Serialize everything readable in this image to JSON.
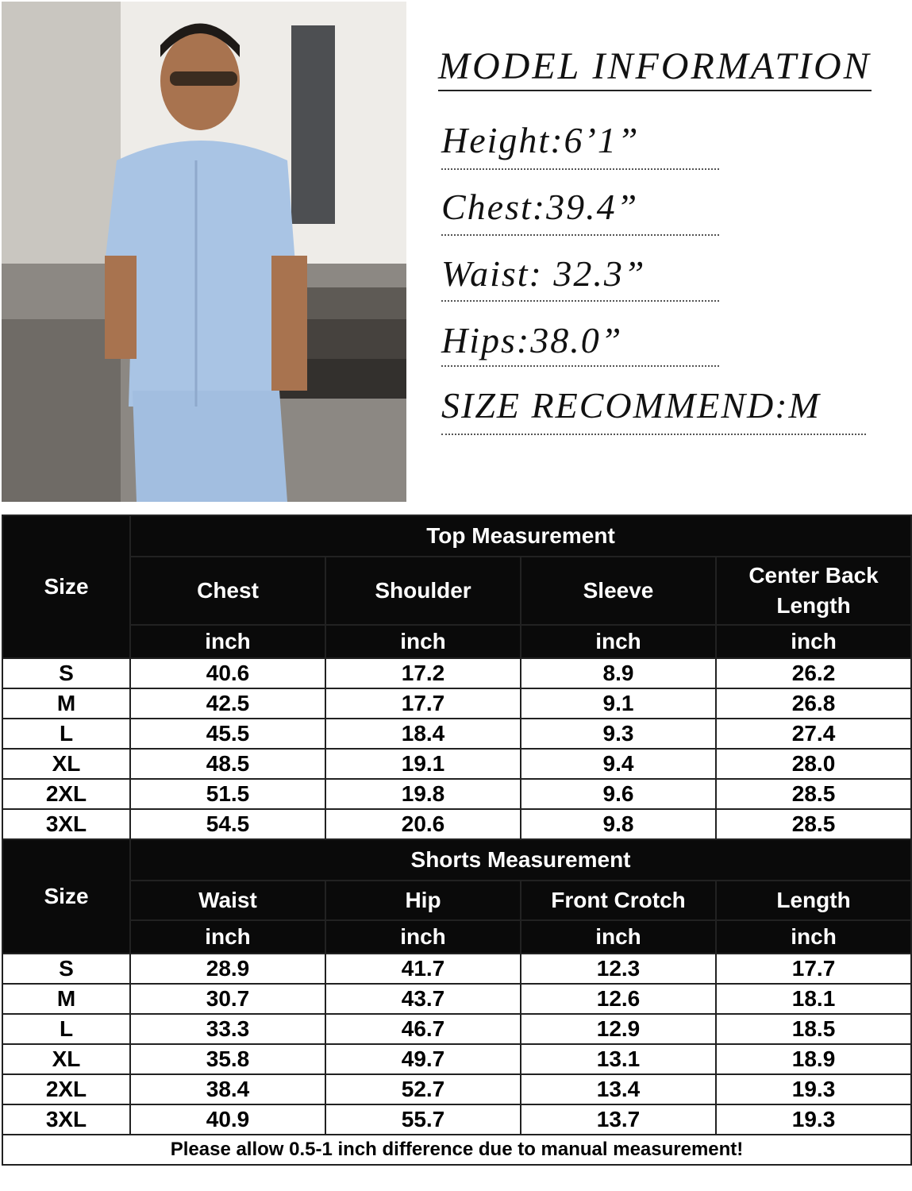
{
  "model_info": {
    "title": "MODEL INFORMATION",
    "lines": [
      "Height:6’1”",
      "Chest:39.4”",
      "Waist: 32.3”",
      "Hips:38.0”",
      "SIZE RECOMMEND:M"
    ]
  },
  "colors": {
    "header_bg": "#0a0a0a",
    "shirt": "#a9c4e4"
  },
  "top": {
    "size_label": "Size",
    "title": "Top Measurement",
    "columns": [
      "Chest",
      "Shoulder",
      "Sleeve",
      "Center Back Length"
    ],
    "unit": "inch",
    "rows": [
      {
        "size": "S",
        "values": [
          "40.6",
          "17.2",
          "8.9",
          "26.2"
        ]
      },
      {
        "size": "M",
        "values": [
          "42.5",
          "17.7",
          "9.1",
          "26.8"
        ]
      },
      {
        "size": "L",
        "values": [
          "45.5",
          "18.4",
          "9.3",
          "27.4"
        ]
      },
      {
        "size": "XL",
        "values": [
          "48.5",
          "19.1",
          "9.4",
          "28.0"
        ]
      },
      {
        "size": "2XL",
        "values": [
          "51.5",
          "19.8",
          "9.6",
          "28.5"
        ]
      },
      {
        "size": "3XL",
        "values": [
          "54.5",
          "20.6",
          "9.8",
          "28.5"
        ]
      }
    ]
  },
  "shorts": {
    "size_label": "Size",
    "title": "Shorts Measurement",
    "columns": [
      "Waist",
      "Hip",
      "Front Crotch",
      "Length"
    ],
    "unit": "inch",
    "rows": [
      {
        "size": "S",
        "values": [
          "28.9",
          "41.7",
          "12.3",
          "17.7"
        ]
      },
      {
        "size": "M",
        "values": [
          "30.7",
          "43.7",
          "12.6",
          "18.1"
        ]
      },
      {
        "size": "L",
        "values": [
          "33.3",
          "46.7",
          "12.9",
          "18.5"
        ]
      },
      {
        "size": "XL",
        "values": [
          "35.8",
          "49.7",
          "13.1",
          "18.9"
        ]
      },
      {
        "size": "2XL",
        "values": [
          "38.4",
          "52.7",
          "13.4",
          "19.3"
        ]
      },
      {
        "size": "3XL",
        "values": [
          "40.9",
          "55.7",
          "13.7",
          "19.3"
        ]
      }
    ]
  },
  "note": "Please allow 0.5-1 inch difference due to manual measurement!"
}
